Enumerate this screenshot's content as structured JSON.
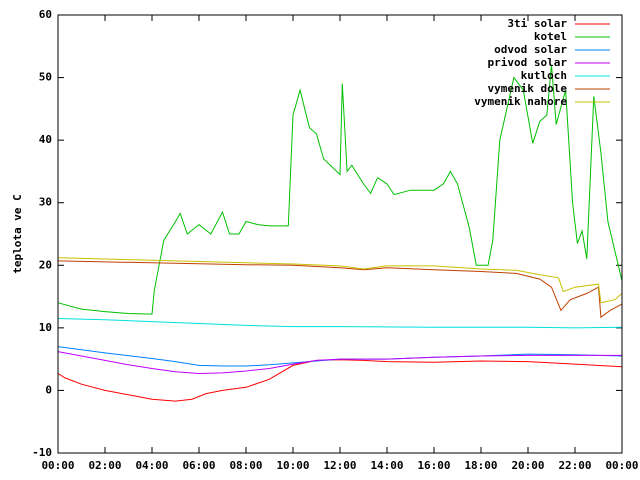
{
  "chart_data": {
    "type": "line",
    "ylabel": "teplota ve C",
    "xlim": [
      0,
      24
    ],
    "ylim": [
      -10,
      60
    ],
    "xticks": [
      {
        "value": 0,
        "label": "00:00"
      },
      {
        "value": 2,
        "label": "02:00"
      },
      {
        "value": 4,
        "label": "04:00"
      },
      {
        "value": 6,
        "label": "06:00"
      },
      {
        "value": 8,
        "label": "08:00"
      },
      {
        "value": 10,
        "label": "10:00"
      },
      {
        "value": 12,
        "label": "12:00"
      },
      {
        "value": 14,
        "label": "14:00"
      },
      {
        "value": 16,
        "label": "16:00"
      },
      {
        "value": 18,
        "label": "18:00"
      },
      {
        "value": 20,
        "label": "20:00"
      },
      {
        "value": 22,
        "label": "22:00"
      },
      {
        "value": 24,
        "label": "00:00"
      }
    ],
    "yticks": [
      -10,
      0,
      10,
      20,
      30,
      40,
      50,
      60
    ],
    "legend": "top-right",
    "series": [
      {
        "name": "3ti solar",
        "color": "#ff0000",
        "x": [
          0,
          0.3,
          1,
          2,
          3,
          4,
          5,
          5.7,
          6.3,
          7,
          8,
          9,
          10,
          11,
          12,
          13,
          14,
          16,
          18,
          20,
          22,
          24
        ],
        "values": [
          2.7,
          2.0,
          1.0,
          0,
          -0.7,
          -1.4,
          -1.7,
          -1.4,
          -0.5,
          0,
          0.5,
          1.8,
          4.0,
          4.8,
          4.9,
          4.8,
          4.6,
          4.5,
          4.7,
          4.6,
          4.2,
          3.8
        ]
      },
      {
        "name": "kotel",
        "color": "#00c000",
        "x": [
          0,
          1,
          2,
          3,
          4,
          4.1,
          4.5,
          5,
          5.2,
          5.5,
          6,
          6.5,
          7,
          7.3,
          7.7,
          8,
          8.5,
          9,
          9.8,
          10,
          10.3,
          10.7,
          11,
          11.3,
          12,
          12.1,
          12.3,
          12.5,
          13,
          13.3,
          13.6,
          14,
          14.3,
          15,
          16,
          16.4,
          16.7,
          17,
          17.5,
          17.8,
          18,
          18.3,
          18.5,
          18.8,
          19.4,
          19.8,
          20.2,
          20.5,
          20.8,
          21,
          21.2,
          21.6,
          21.9,
          22.1,
          22.3,
          22.5,
          22.8,
          23.1,
          23.4,
          24
        ],
        "values": [
          14,
          13,
          12.6,
          12.3,
          12.2,
          16,
          24,
          27,
          28.3,
          25,
          26.5,
          25,
          28.5,
          25,
          25,
          27,
          26.5,
          26.3,
          26.3,
          44,
          48,
          42,
          41,
          37,
          34.5,
          49,
          35,
          36,
          33,
          31.5,
          34,
          33,
          31.3,
          32,
          32,
          33,
          35,
          33,
          26,
          20,
          20,
          20,
          24,
          40,
          50,
          48,
          39.5,
          43,
          44,
          52,
          42.5,
          48,
          30,
          23.5,
          25.5,
          21,
          47,
          38,
          27,
          17.5
        ]
      },
      {
        "name": "odvod solar",
        "color": "#0080ff",
        "x": [
          0,
          2,
          4,
          5,
          6,
          7,
          8,
          9,
          10,
          11,
          12,
          14,
          16,
          18,
          20,
          22,
          24
        ],
        "values": [
          7,
          6,
          5.1,
          4.6,
          4.0,
          3.9,
          3.9,
          4.1,
          4.4,
          4.7,
          5.0,
          5.0,
          5.3,
          5.5,
          5.8,
          5.7,
          5.5
        ]
      },
      {
        "name": "privod solar",
        "color": "#c000ff",
        "x": [
          0,
          1,
          2,
          3,
          4,
          5,
          6,
          7,
          8,
          9,
          10,
          11,
          12,
          14,
          16,
          18,
          20,
          22,
          24
        ],
        "values": [
          6.2,
          5.5,
          4.8,
          4.1,
          3.5,
          3.0,
          2.7,
          2.8,
          3.1,
          3.5,
          4.2,
          4.8,
          5.0,
          5.0,
          5.3,
          5.5,
          5.6,
          5.6,
          5.6
        ]
      },
      {
        "name": "kutloch",
        "color": "#00e0e0",
        "x": [
          0,
          2,
          4,
          6,
          8,
          10,
          12,
          16,
          20,
          22,
          24
        ],
        "values": [
          11.5,
          11.3,
          11.0,
          10.7,
          10.4,
          10.2,
          10.2,
          10.1,
          10.1,
          10.0,
          10.1
        ]
      },
      {
        "name": "vymenik dole",
        "color": "#c04000",
        "x": [
          0,
          4,
          8,
          10,
          12,
          13,
          14,
          16,
          18,
          19.5,
          20.5,
          21,
          21.4,
          21.8,
          22.5,
          23,
          23.1,
          23.5,
          24
        ],
        "values": [
          20.7,
          20.4,
          20.1,
          20.0,
          19.6,
          19.3,
          19.6,
          19.3,
          19.0,
          18.7,
          17.8,
          16.5,
          12.8,
          14.5,
          15.5,
          16.5,
          11.7,
          12.8,
          13.8
        ]
      },
      {
        "name": "vymenik nahore",
        "color": "#c8c000",
        "x": [
          0,
          4,
          8,
          10,
          12,
          13,
          14,
          16,
          18,
          19.5,
          20.5,
          21.3,
          21.5,
          22,
          23,
          23.1,
          23.7,
          24
        ],
        "values": [
          21.2,
          20.8,
          20.4,
          20.2,
          19.9,
          19.4,
          19.9,
          19.9,
          19.4,
          19.2,
          18.5,
          18,
          15.8,
          16.5,
          17,
          14,
          14.5,
          15.5
        ]
      }
    ]
  }
}
